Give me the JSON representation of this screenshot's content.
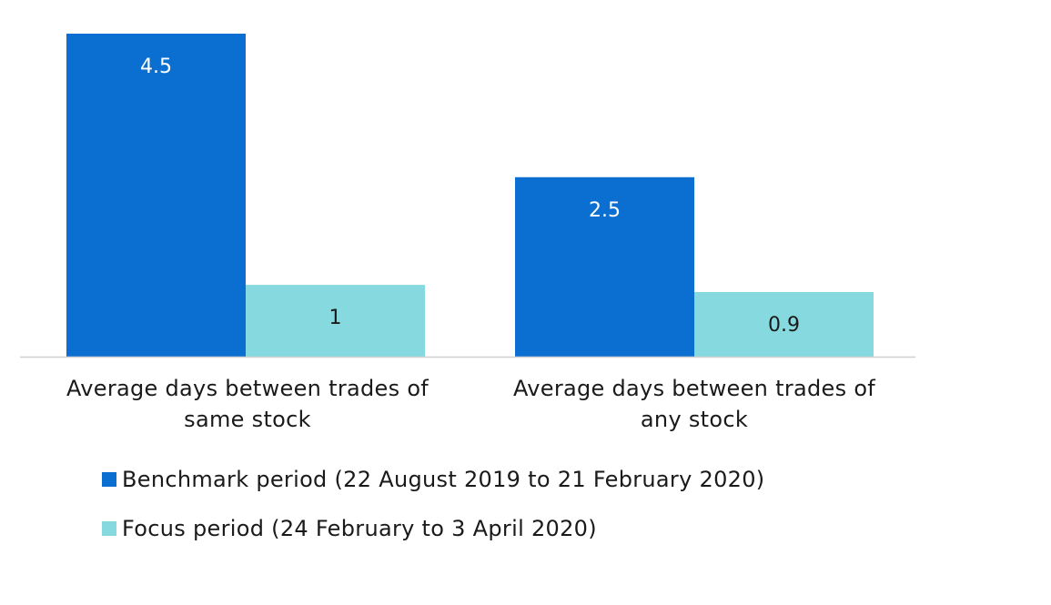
{
  "chart_data": {
    "type": "bar",
    "title": "",
    "xlabel": "",
    "ylabel": "",
    "categories": [
      "Average days between trades of same stock",
      "Average days between trades of any stock"
    ],
    "category_lines": [
      [
        "Average days between trades of",
        "same stock"
      ],
      [
        "Average days between trades of",
        "any stock"
      ]
    ],
    "series": [
      {
        "name": "Benchmark period (22 August 2019 to 21 February 2020)",
        "values": [
          4.5,
          2.5
        ],
        "color": "#0A6FD1"
      },
      {
        "name": "Focus period (24 February to 3 April 2020)",
        "values": [
          1,
          0.9
        ],
        "color": "#86DADF"
      }
    ],
    "data_labels": [
      [
        "4.5",
        "2.5"
      ],
      [
        "1",
        "0.9"
      ]
    ],
    "ylim": [
      0,
      4.5
    ],
    "grid": false,
    "legend_position": "bottom-left",
    "label_colors": [
      "#ffffff",
      "#1a1a1a"
    ]
  }
}
